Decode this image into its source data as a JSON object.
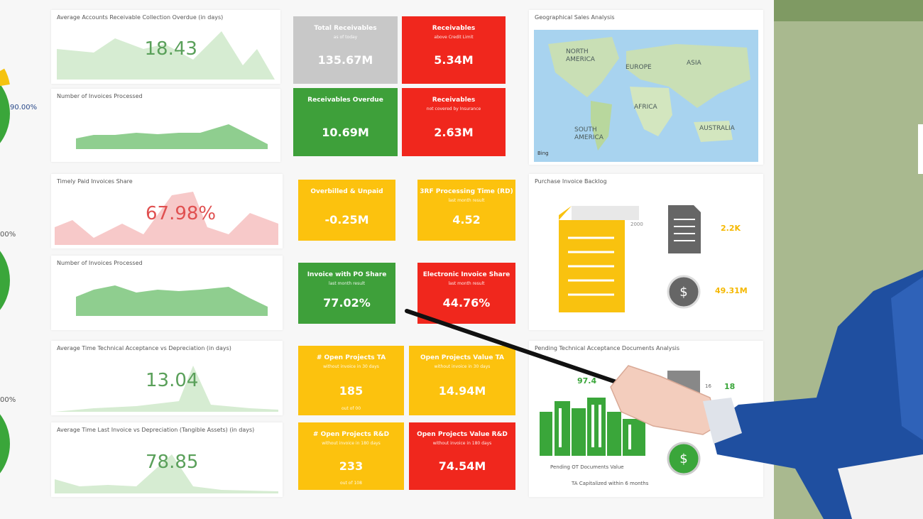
{
  "gauges": [
    "90.00%",
    "00%",
    "00%"
  ],
  "cards": [
    {
      "title": "Average Accounts Receivable Collection Overdue (in days)",
      "value": "18.43"
    },
    {
      "title": "Number of Invoices Processed"
    },
    {
      "title": "Timely Paid Invoices Share",
      "value": "67.98%"
    },
    {
      "title": "Number of Invoices Processed"
    },
    {
      "title": "Average Time Technical Acceptance vs Depreciation (in days)",
      "value": "13.04"
    },
    {
      "title": "Average Time Last Invoice vs Depreciation (Tangible Assets) (in days)",
      "value": "78.85"
    }
  ],
  "tiles": [
    {
      "title": "Total Receivables",
      "subtitle": "as of today",
      "value": "135.67M"
    },
    {
      "title": "Receivables",
      "subtitle": "above Credit Limit",
      "value": "5.34M"
    },
    {
      "title": "Receivables Overdue",
      "value": "10.69M"
    },
    {
      "title": "Receivables",
      "subtitle": "not covered by Insurance",
      "value": "2.63M"
    },
    {
      "title": "Overbilled & Unpaid",
      "value": "-0.25M"
    },
    {
      "title": "3RF Processing Time (RD)",
      "subtitle": "last month result",
      "value": "4.52"
    },
    {
      "title": "Invoice with PO Share",
      "subtitle": "last month result",
      "value": "77.02%"
    },
    {
      "title": "Electronic Invoice Share",
      "subtitle": "last month result",
      "value": "44.76%"
    },
    {
      "title": "# Open Projects TA",
      "subtitle": "without invoice in 30 days",
      "value": "185",
      "footnote": "out of 00"
    },
    {
      "title": "Open Projects Value TA",
      "subtitle": "without invoice in 30 days",
      "value": "14.94M"
    },
    {
      "title": "# Open Projects R&D",
      "subtitle": "without invoice in 180 days",
      "value": "233",
      "footnote": "out of 108"
    },
    {
      "title": "Open Projects Value R&D",
      "subtitle": "without invoice in 180 days",
      "value": "74.54M"
    }
  ],
  "map": {
    "title": "Geographical Sales Analysis",
    "labels": [
      "NORTH AMERICA",
      "EUROPE",
      "ASIA",
      "AFRICA",
      "SOUTH AMERICA",
      "AUSTRALIA"
    ],
    "credit": "Bing"
  },
  "backlog": {
    "title": "Purchase Invoice Backlog",
    "axis_label": "2000",
    "count": "2.2K",
    "amount": "49.31M"
  },
  "pending": {
    "title": "Pending Technical Acceptance Documents Analysis",
    "percent": "97.4",
    "count_a": "16",
    "count_b": "18",
    "caption_1": "Pending OT Documents Value",
    "caption_2": "TA Capitalized within 6 months"
  }
}
